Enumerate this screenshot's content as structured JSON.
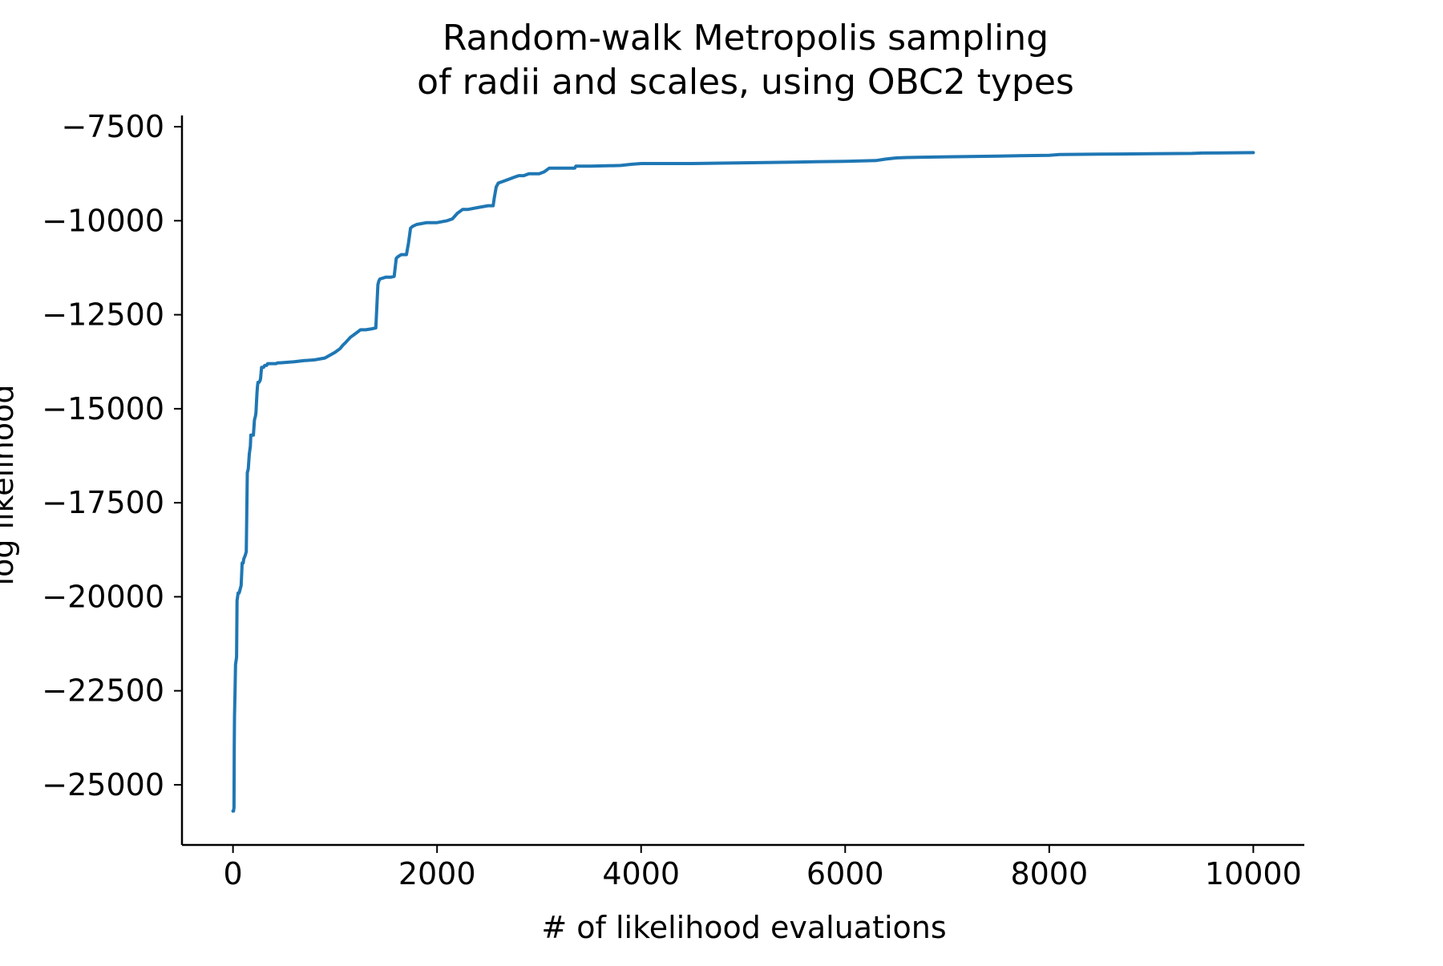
{
  "chart_data": {
    "type": "line",
    "title": [
      "Random-walk Metropolis sampling",
      "of radii and scales, using OBC2 types"
    ],
    "xlabel": "# of likelihood evaluations",
    "ylabel": "log likelihood",
    "xlim": [
      -500,
      10500
    ],
    "ylim": [
      -26600,
      -7200
    ],
    "xticks": [
      0,
      2000,
      4000,
      6000,
      8000,
      10000
    ],
    "xtick_labels": [
      "0",
      "2000",
      "4000",
      "6000",
      "8000",
      "10000"
    ],
    "yticks": [
      -7500,
      -10000,
      -12500,
      -15000,
      -17500,
      -20000,
      -22500,
      -25000
    ],
    "ytick_labels": [
      "−7500",
      "−10000",
      "−12500",
      "−15000",
      "−17500",
      "−20000",
      "−22500",
      "−25000"
    ],
    "grid": false,
    "line_color": "#1f77b4",
    "series": [
      {
        "x": [
          0,
          5,
          10,
          12,
          15,
          20,
          25,
          30,
          35,
          40,
          45,
          50,
          55,
          60,
          80,
          90,
          100,
          105,
          120,
          130,
          140,
          150,
          160,
          170,
          175,
          185,
          200,
          210,
          220,
          225,
          235,
          240,
          245,
          250,
          255,
          265,
          270,
          280,
          300,
          310,
          320,
          330,
          340,
          350,
          360,
          370,
          380,
          400,
          420,
          440,
          460,
          500,
          600,
          700,
          800,
          900,
          1000,
          1050,
          1080,
          1100,
          1150,
          1200,
          1250,
          1300,
          1350,
          1400,
          1420,
          1430,
          1440,
          1500,
          1550,
          1580,
          1600,
          1620,
          1650,
          1700,
          1720,
          1730,
          1740,
          1760,
          1800,
          1900,
          2000,
          2100,
          2150,
          2200,
          2250,
          2300,
          2400,
          2500,
          2550,
          2560,
          2580,
          2590,
          2600,
          2650,
          2700,
          2750,
          2800,
          2850,
          2900,
          3000,
          3050,
          3100,
          3350,
          3360,
          3500,
          3800,
          3900,
          4000,
          4500,
          5000,
          5500,
          6000,
          6300,
          6400,
          6500,
          6600,
          7000,
          7500,
          8000,
          8100,
          8500,
          9000,
          9400,
          9500,
          10000
        ],
        "y": [
          -25700,
          -25700,
          -25600,
          -24000,
          -23200,
          -22500,
          -21800,
          -21700,
          -21600,
          -20100,
          -20000,
          -19900,
          -19900,
          -19900,
          -19700,
          -19100,
          -19100,
          -19000,
          -18900,
          -18800,
          -16700,
          -16600,
          -16200,
          -16000,
          -15700,
          -15700,
          -15700,
          -15300,
          -15200,
          -15100,
          -14600,
          -14400,
          -14300,
          -14300,
          -14300,
          -14250,
          -14200,
          -13900,
          -13900,
          -13850,
          -13850,
          -13850,
          -13800,
          -13800,
          -13800,
          -13800,
          -13800,
          -13800,
          -13800,
          -13780,
          -13780,
          -13770,
          -13750,
          -13720,
          -13700,
          -13650,
          -13500,
          -13400,
          -13300,
          -13250,
          -13100,
          -13000,
          -12900,
          -12900,
          -12880,
          -12850,
          -11700,
          -11600,
          -11550,
          -11500,
          -11500,
          -11480,
          -11000,
          -10950,
          -10900,
          -10900,
          -10600,
          -10400,
          -10200,
          -10150,
          -10100,
          -10050,
          -10050,
          -10000,
          -9950,
          -9800,
          -9700,
          -9700,
          -9650,
          -9600,
          -9600,
          -9400,
          -9100,
          -9050,
          -9000,
          -8950,
          -8900,
          -8850,
          -8800,
          -8800,
          -8750,
          -8750,
          -8700,
          -8600,
          -8600,
          -8550,
          -8550,
          -8530,
          -8500,
          -8480,
          -8480,
          -8460,
          -8440,
          -8420,
          -8400,
          -8360,
          -8330,
          -8320,
          -8300,
          -8280,
          -8260,
          -8240,
          -8230,
          -8220,
          -8210,
          -8200,
          -8190
        ]
      }
    ]
  }
}
